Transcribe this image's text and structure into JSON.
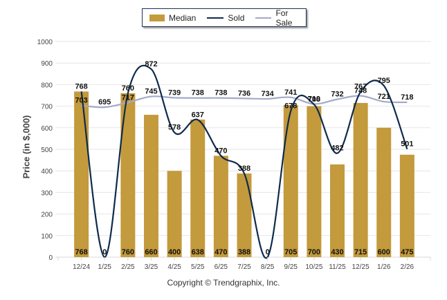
{
  "chart_data": {
    "type": "bar",
    "title": "",
    "xlabel": "",
    "ylabel": "Price (in $,000)",
    "ylim": [
      0,
      1000
    ],
    "yticks": [
      0,
      100,
      200,
      300,
      400,
      500,
      600,
      700,
      800,
      900,
      1000
    ],
    "grid": true,
    "legend_position": "top-center",
    "categories": [
      "12/24",
      "1/25",
      "2/25",
      "3/25",
      "4/25",
      "5/25",
      "6/25",
      "7/25",
      "8/25",
      "9/25",
      "10/25",
      "11/25",
      "12/25",
      "1/26",
      "2/26"
    ],
    "series": [
      {
        "name": "Median",
        "kind": "bar",
        "color": "#c39a3c",
        "values": [
          768,
          0,
          760,
          660,
          400,
          638,
          470,
          388,
          0,
          705,
          700,
          430,
          715,
          600,
          475
        ]
      },
      {
        "name": "Sold",
        "kind": "line",
        "color": "#0e2a4d",
        "values": [
          768,
          0,
          760,
          872,
          578,
          637,
          470,
          388,
          0,
          678,
          708,
          482,
          767,
          795,
          501
        ]
      },
      {
        "name": "For Sale",
        "kind": "line",
        "color": "#a3aac8",
        "values": [
          703,
          695,
          717,
          745,
          739,
          738,
          738,
          736,
          734,
          741,
          710,
          732,
          748,
          721,
          718
        ]
      }
    ]
  },
  "legend": {
    "items": [
      {
        "label": "Median",
        "color": "#c39a3c",
        "kind": "bar"
      },
      {
        "label": "Sold",
        "color": "#0e2a4d",
        "kind": "line"
      },
      {
        "label": "For Sale",
        "color": "#a3aac8",
        "kind": "line"
      }
    ]
  },
  "footer": {
    "copyright": "Copyright © Trendgraphix, Inc."
  }
}
